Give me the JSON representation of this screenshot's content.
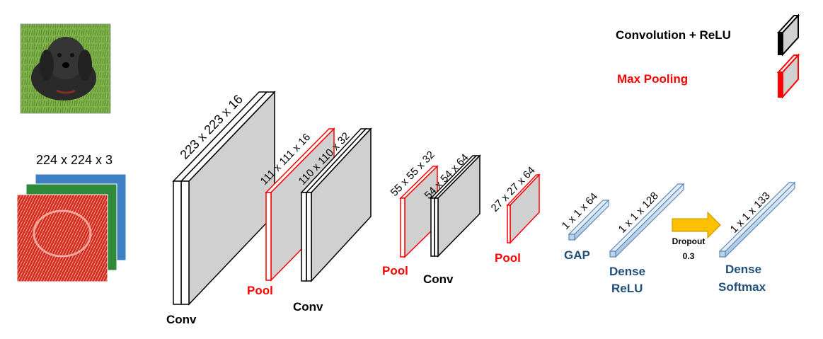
{
  "legend": {
    "conv_label": "Convolution  + ReLU",
    "pool_label": "Max Pooling",
    "conv_color": "#000000",
    "pool_color": "#ff0000"
  },
  "input": {
    "shape_label": "224 x 224 x 3",
    "photo_subject": "dog-photo",
    "channel_colors": [
      "#d42a1e",
      "#2f8a3a",
      "#3f7fc4"
    ]
  },
  "layers": [
    {
      "id": "conv1",
      "dims": "223 x 223 x 16",
      "label": "Conv"
    },
    {
      "id": "pool1",
      "dims": "111 x 111 x 16",
      "label": "Pool"
    },
    {
      "id": "conv2",
      "dims": "110 x 110 x 32",
      "label": "Conv"
    },
    {
      "id": "pool2",
      "dims": "55 x 55 x 32",
      "label": "Pool"
    },
    {
      "id": "conv3",
      "dims": "54 x 54 x 64",
      "label": "Conv"
    },
    {
      "id": "pool3",
      "dims": "27 x 27 x 64",
      "label": "Pool"
    },
    {
      "id": "gap",
      "dims": "1 x 1 x 64",
      "label": "GAP"
    },
    {
      "id": "dense1",
      "dims": "1 x 1 x 128",
      "label_line1": "Dense",
      "label_line2": "ReLU"
    },
    {
      "id": "dense2",
      "dims": "1 x 1 x 133",
      "label_line1": "Dense",
      "label_line2": "Softmax"
    }
  ],
  "dropout": {
    "label": "Dropout",
    "value": "0.3",
    "arrow_color": "#ffc000"
  },
  "colors": {
    "face": "#d0d0d0",
    "dense_fill": "#bcd3ea",
    "dense_stroke": "#5c88b5",
    "dense_text": "#1f4e79"
  }
}
